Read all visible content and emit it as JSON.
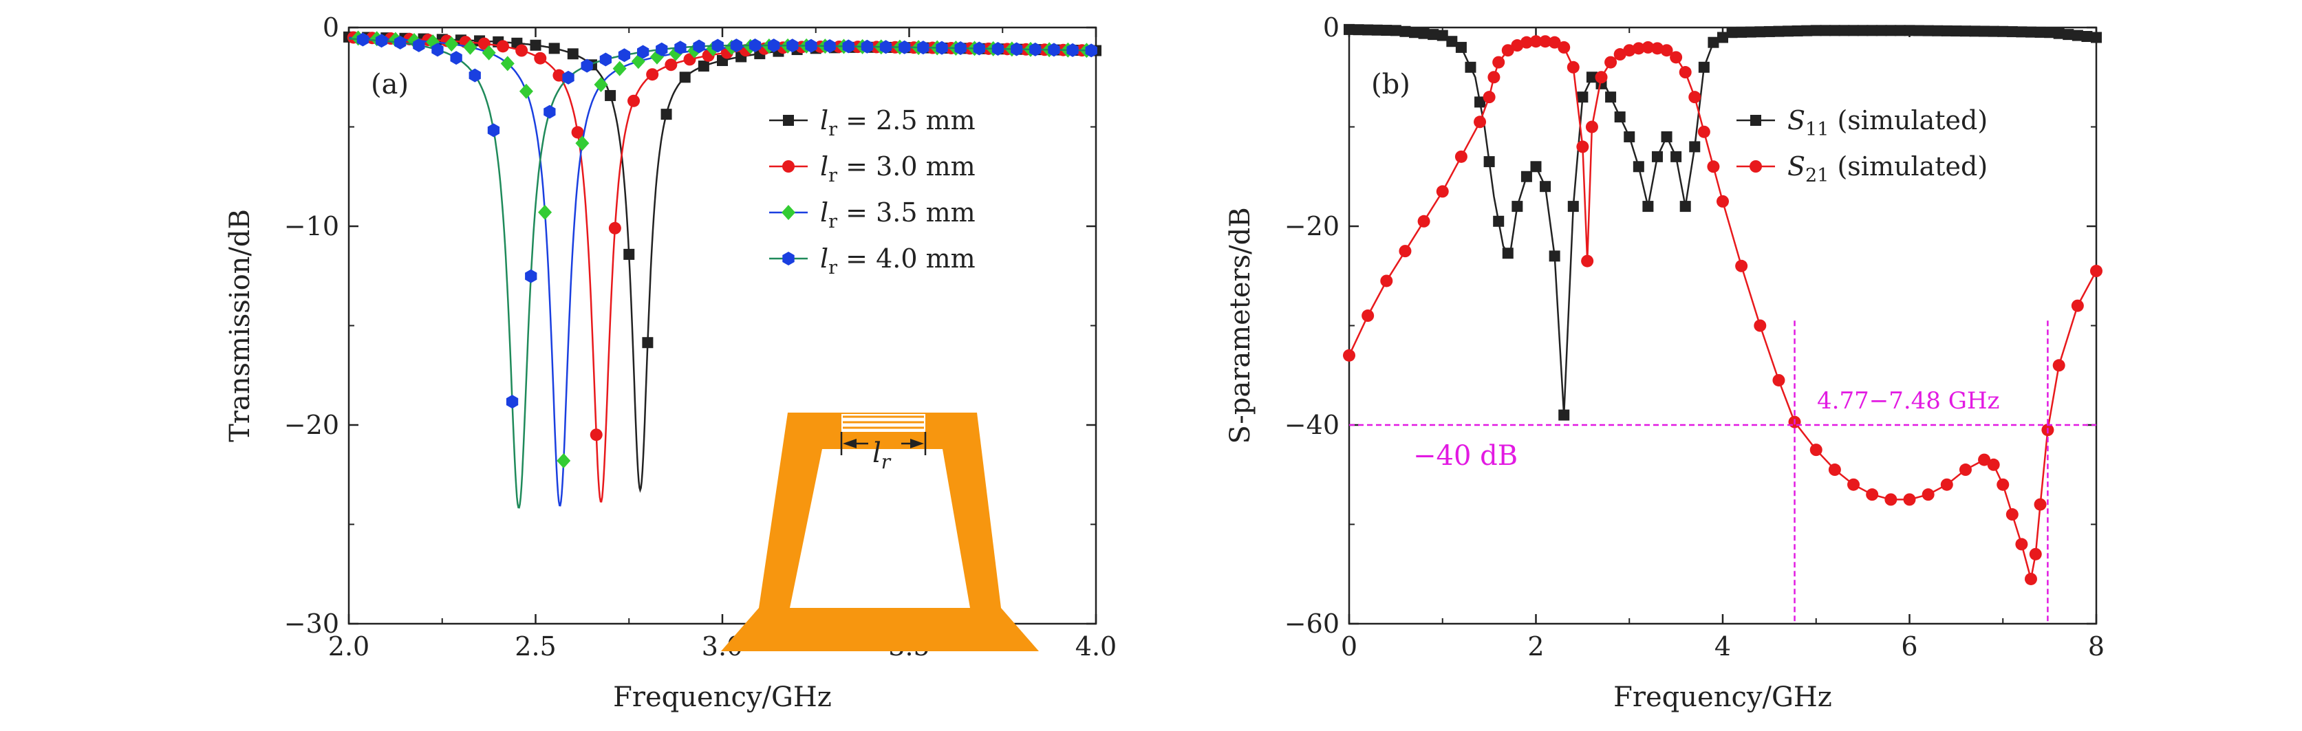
{
  "colors": {
    "black": "#222222",
    "red": "#e8191c",
    "blue": "#1a3fe0",
    "green": "#33cc33",
    "green_line": "#1f8a5a",
    "magenta": "#e21ae2",
    "orange": "#f7960f"
  },
  "chart_data": [
    {
      "panel": "(a)",
      "type": "line",
      "title": "",
      "xlabel": "Frequency/GHz",
      "ylabel": "Transmission/dB",
      "xlim": [
        2.0,
        4.0
      ],
      "ylim": [
        -30,
        0
      ],
      "xticks": [
        2.0,
        2.5,
        3.0,
        3.5,
        4.0
      ],
      "xtick_labels": [
        "2.0",
        "2.5",
        "3.0",
        "3.5",
        "4.0"
      ],
      "yticks": [
        0,
        -10,
        -20,
        -30
      ],
      "ytick_labels": [
        "0",
        "−10",
        "−20",
        "−30"
      ],
      "legend_position": "top-right",
      "inset": {
        "label": "l_r",
        "description": "orange split-ring resonator with gap length l_r"
      },
      "series": [
        {
          "name": "l_r = 2.5 mm",
          "legend_var": "l",
          "legend_sub": "r",
          "legend_rest": " = 2.5 mm",
          "color_key": "black",
          "marker": "square",
          "f0": 2.78,
          "depth": -22.8,
          "q": 0.028
        },
        {
          "name": "l_r = 3.0 mm",
          "legend_var": "l",
          "legend_sub": "r",
          "legend_rest": " = 3.0 mm",
          "color_key": "red",
          "marker": "circle",
          "f0": 2.675,
          "depth": -23.4,
          "q": 0.03
        },
        {
          "name": "l_r = 3.5 mm",
          "legend_var": "l",
          "legend_sub": "r",
          "legend_rest": " = 3.5 mm",
          "color_key": "blue",
          "marker_color_key": "green",
          "marker": "diamond",
          "f0": 2.565,
          "depth": -23.6,
          "q": 0.03
        },
        {
          "name": "l_r = 4.0 mm",
          "legend_var": "l",
          "legend_sub": "r",
          "legend_rest": " = 4.0 mm",
          "color_key": "green_line",
          "marker_color_key": "blue",
          "marker": "hexagon",
          "f0": 2.455,
          "depth": -23.7,
          "q": 0.032
        }
      ]
    },
    {
      "panel": "(b)",
      "type": "line",
      "title": "",
      "xlabel": "Frequency/GHz",
      "ylabel": "S-parameters/dB",
      "xlim": [
        0,
        8
      ],
      "ylim": [
        -60,
        0
      ],
      "xticks": [
        0,
        2,
        4,
        6,
        8
      ],
      "xtick_labels": [
        "0",
        "2",
        "4",
        "6",
        "8"
      ],
      "yticks": [
        0,
        -20,
        -40,
        -60
      ],
      "ytick_labels": [
        "0",
        "−20",
        "−40",
        "−60"
      ],
      "legend_position": "top-right",
      "series": [
        {
          "name": "S11 (simulated)",
          "legend_var": "S",
          "legend_sub": "11",
          "legend_rest": " (simulated)",
          "color_key": "black",
          "marker": "square",
          "x": [
            0,
            0.5,
            1.0,
            1.2,
            1.35,
            1.45,
            1.55,
            1.65,
            1.72,
            1.8,
            1.9,
            2.0,
            2.1,
            2.2,
            2.3,
            2.4,
            2.5,
            2.6,
            2.75,
            2.9,
            3.0,
            3.1,
            3.2,
            3.3,
            3.4,
            3.5,
            3.6,
            3.7,
            3.8,
            3.9,
            4.1,
            5.0,
            6.0,
            7.0,
            7.5,
            7.8,
            8.0
          ],
          "y": [
            -0.2,
            -0.3,
            -0.8,
            -2.0,
            -5.0,
            -10.0,
            -17.0,
            -22.0,
            -23.0,
            -18.0,
            -15.0,
            -14.0,
            -16.0,
            -23.0,
            -39.0,
            -18.0,
            -7.0,
            -5.0,
            -6.0,
            -9.0,
            -11.0,
            -14.0,
            -18.0,
            -13.0,
            -11.0,
            -13.0,
            -18.0,
            -12.0,
            -4.0,
            -1.5,
            -0.5,
            -0.3,
            -0.3,
            -0.4,
            -0.5,
            -0.8,
            -1.0
          ]
        },
        {
          "name": "S21 (simulated)",
          "legend_var": "S",
          "legend_sub": "21",
          "legend_rest": " (simulated)",
          "color_key": "red",
          "marker": "circle",
          "x": [
            0.0,
            0.2,
            0.4,
            0.6,
            0.8,
            1.0,
            1.2,
            1.4,
            1.5,
            1.55,
            1.6,
            1.7,
            1.8,
            1.9,
            2.0,
            2.1,
            2.2,
            2.3,
            2.4,
            2.5,
            2.55,
            2.6,
            2.7,
            2.8,
            2.9,
            3.0,
            3.1,
            3.2,
            3.3,
            3.4,
            3.5,
            3.6,
            3.7,
            3.8,
            3.9,
            4.0,
            4.2,
            4.4,
            4.6,
            4.77,
            5.0,
            5.2,
            5.4,
            5.6,
            5.8,
            6.0,
            6.2,
            6.4,
            6.6,
            6.8,
            6.9,
            7.0,
            7.1,
            7.2,
            7.3,
            7.35,
            7.4,
            7.48,
            7.6,
            7.8,
            8.0
          ],
          "y": [
            -33.0,
            -29.0,
            -25.5,
            -22.5,
            -19.5,
            -16.5,
            -13.0,
            -9.5,
            -7.0,
            -5.0,
            -3.5,
            -2.3,
            -1.8,
            -1.5,
            -1.4,
            -1.4,
            -1.5,
            -2.0,
            -4.0,
            -12.0,
            -23.5,
            -10.0,
            -5.0,
            -3.5,
            -2.7,
            -2.3,
            -2.1,
            -2.0,
            -2.1,
            -2.3,
            -3.0,
            -4.5,
            -7.0,
            -10.5,
            -14.0,
            -17.5,
            -24.0,
            -30.0,
            -35.5,
            -39.7,
            -42.5,
            -44.5,
            -46.0,
            -47.0,
            -47.5,
            -47.5,
            -47.0,
            -46.0,
            -44.5,
            -43.5,
            -44.0,
            -46.0,
            -49.0,
            -52.0,
            -55.5,
            -53.0,
            -48.0,
            -40.5,
            -34.0,
            -28.0,
            -24.5
          ]
        }
      ],
      "annotations": {
        "hline_label": "−40 dB",
        "hline_value": -40,
        "band_label": "4.77−7.48 GHz",
        "band_start": 4.77,
        "band_end": 7.48
      }
    }
  ]
}
